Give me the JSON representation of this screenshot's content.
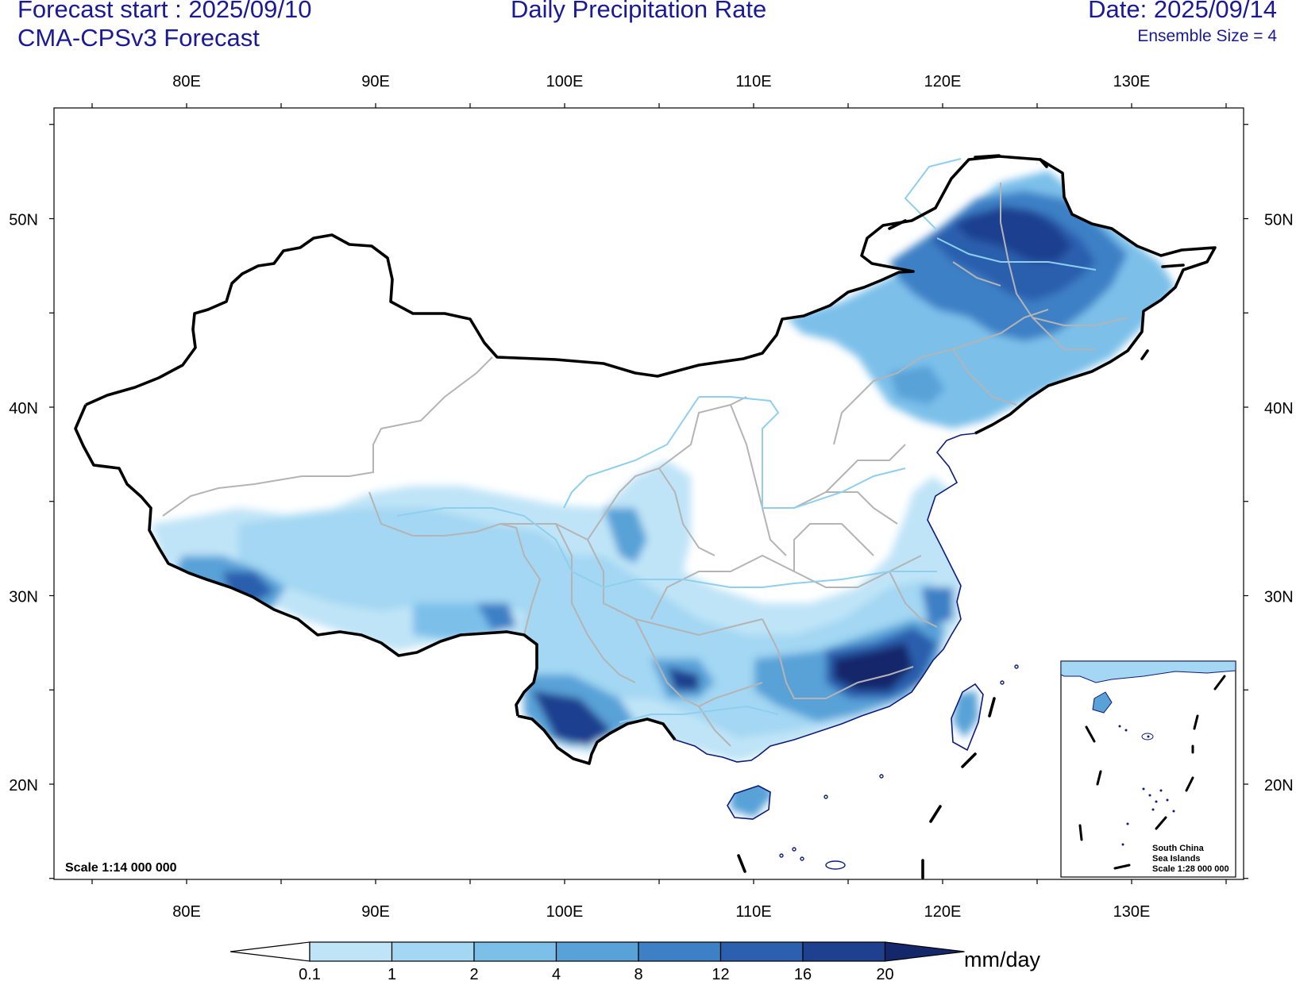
{
  "header": {
    "forecast_start": "Forecast start : 2025/09/10",
    "model": "CMA-CPSv3 Forecast",
    "title": "Daily Precipitation Rate",
    "date": "Date: 2025/09/14",
    "ensemble": "Ensemble Size = 4"
  },
  "axes": {
    "lon_labels": [
      "80E",
      "90E",
      "100E",
      "110E",
      "120E",
      "130E"
    ],
    "lat_labels": [
      "20N",
      "30N",
      "40N",
      "50N"
    ]
  },
  "map": {
    "scale_text": "Scale 1:14 000 000",
    "border_color": "#000000",
    "province_color": "#b4b4b4",
    "river_color": "#8ecfee"
  },
  "inset": {
    "line1": "South China",
    "line2": "Sea Islands",
    "line3": "Scale 1:28 000 000"
  },
  "colorbar": {
    "levels": [
      "0.1",
      "1",
      "2",
      "4",
      "8",
      "12",
      "16",
      "20"
    ],
    "colors": [
      "#ffffff",
      "#bfe4f7",
      "#a3d7f3",
      "#7cc0ea",
      "#58a2d8",
      "#3d80c6",
      "#2c5fae",
      "#1f3f8f",
      "#15276b"
    ],
    "unit": "mm/day"
  }
}
